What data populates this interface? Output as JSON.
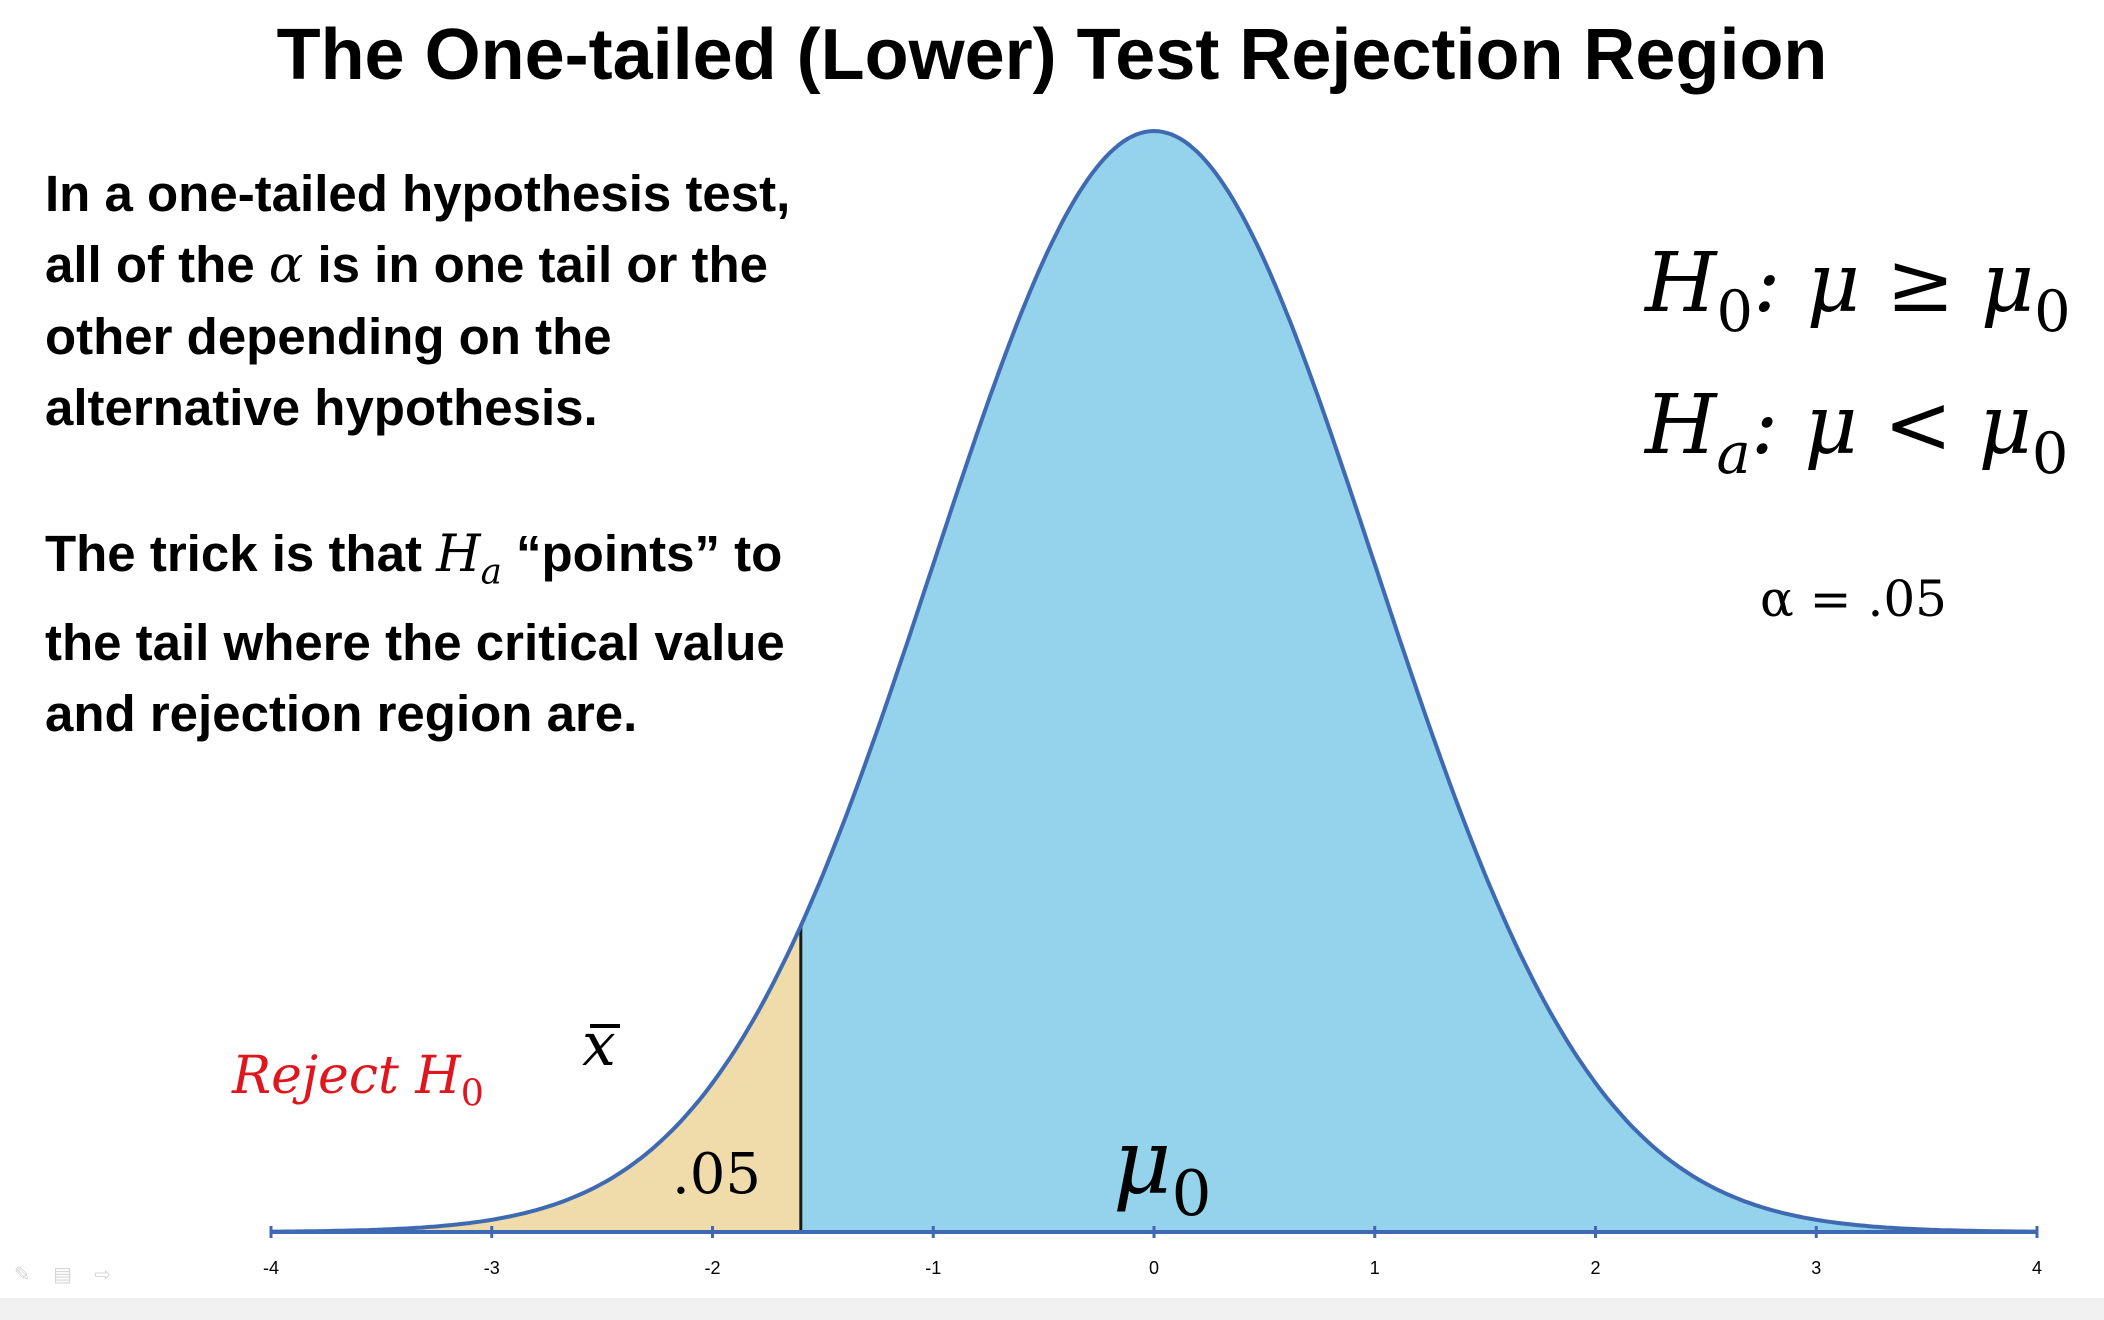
{
  "title": "The One-tailed (Lower) Test Rejection Region",
  "explanation": {
    "p1_line1": "In a one-tailed hypothesis test,",
    "p1_line2_before": "all of the ",
    "p1_line2_symbol": "α",
    "p1_line2_after": " is in one tail or the",
    "p1_line3": "other depending on the",
    "p1_line4": "alternative hypothesis.",
    "p2_line1_before": "The trick is that ",
    "p2_line1_symbol": "H",
    "p2_line1_sub": "a",
    "p2_line1_after": " “points” to",
    "p2_line2": "the tail where the critical value",
    "p2_line3": "and rejection region are."
  },
  "hypotheses": {
    "null": {
      "symbol": "H",
      "sub": "0",
      "relation": ": μ ≥ μ",
      "rel_sub": "0"
    },
    "alternative": {
      "symbol": "H",
      "sub": "a",
      "relation": ": μ < μ",
      "rel_sub": "0"
    }
  },
  "alpha_label": "α = .05",
  "annotations": {
    "reject_label": "Reject H",
    "reject_sub": "0",
    "xbar_label": "x",
    "tail_area": ".05",
    "mu0_label": "μ",
    "mu0_sub": "0"
  },
  "colors": {
    "body_fill": "#94d3eb",
    "tail_fill": "#efdcaa",
    "curve_stroke": "#3f6ab2",
    "reject_text": "#e0161e"
  },
  "chart_data": {
    "type": "area",
    "distribution": "standard normal",
    "mean": 0,
    "sd": 1,
    "xlim": [
      -4,
      4
    ],
    "x_ticks": [
      "-4",
      "-3",
      "-2",
      "-1",
      "0",
      "1",
      "2",
      "3",
      "4"
    ],
    "critical_value": -1.6,
    "rejection_region": "lower tail",
    "tail_area": 0.05
  }
}
